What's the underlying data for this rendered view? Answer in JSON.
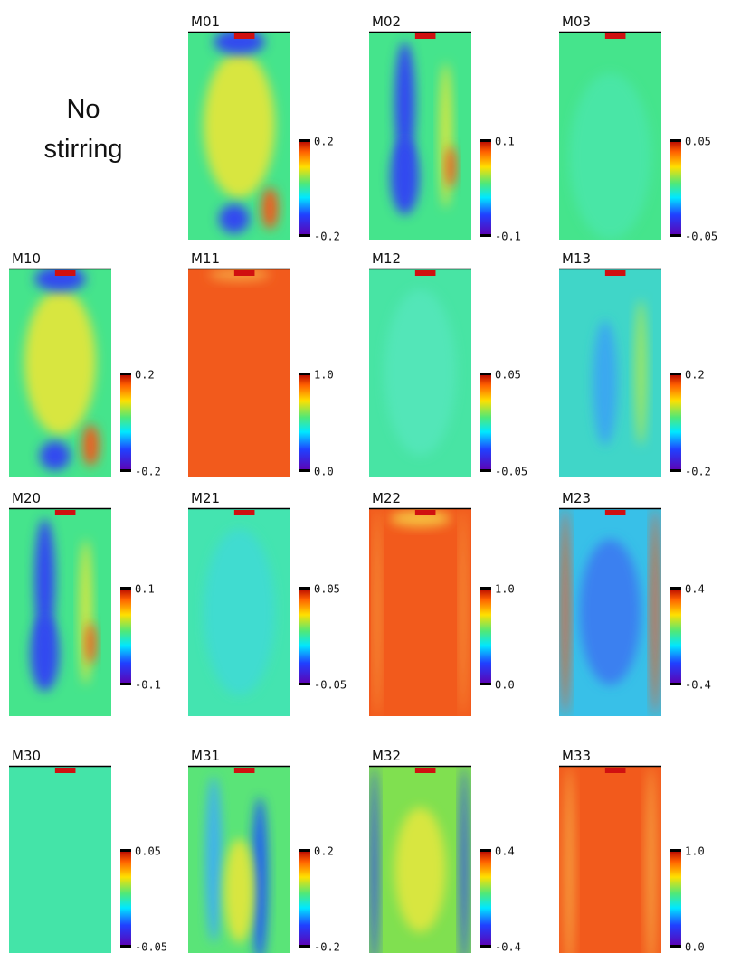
{
  "annotation": {
    "lines": [
      "No",
      "stirring"
    ]
  },
  "panels": [
    {
      "label": "M01",
      "max": "0.2",
      "min": "-0.2"
    },
    {
      "label": "M02",
      "max": "0.1",
      "min": "-0.1"
    },
    {
      "label": "M03",
      "max": "0.05",
      "min": "-0.05"
    },
    {
      "label": "M10",
      "max": "0.2",
      "min": "-0.2"
    },
    {
      "label": "M11",
      "max": "1.0",
      "min": "0.0"
    },
    {
      "label": "M12",
      "max": "0.05",
      "min": "-0.05"
    },
    {
      "label": "M13",
      "max": "0.2",
      "min": "-0.2"
    },
    {
      "label": "M20",
      "max": "0.1",
      "min": "-0.1"
    },
    {
      "label": "M21",
      "max": "0.05",
      "min": "-0.05"
    },
    {
      "label": "M22",
      "max": "1.0",
      "min": "0.0"
    },
    {
      "label": "M23",
      "max": "0.4",
      "min": "-0.4"
    },
    {
      "label": "M30",
      "max": "0.05",
      "min": "-0.05"
    },
    {
      "label": "M31",
      "max": "0.2",
      "min": "-0.2"
    },
    {
      "label": "M32",
      "max": "0.4",
      "min": "-0.4"
    },
    {
      "label": "M33",
      "max": "1.0",
      "min": "0.0"
    }
  ]
}
